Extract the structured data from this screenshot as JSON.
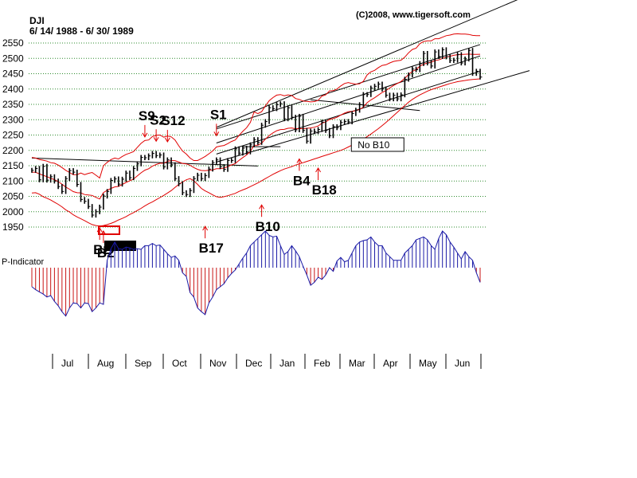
{
  "header": {
    "symbol": "DJI",
    "date_range": "6/ 14/ 1988 - 6/ 30/ 1989",
    "copyright": "(C)2008, www.tigersoft.com"
  },
  "colors": {
    "grid": "#2e8b2e",
    "price_bars": "#000000",
    "bands": "#e00000",
    "channel": "#000000",
    "indicator_positive": "#1a1aa6",
    "indicator_negative": "#c81414",
    "signal_arrow": "#e00000",
    "signal_text": "#000000"
  },
  "chart_data": [
    {
      "type": "ohlc",
      "title": "DJI",
      "y_ticks": [
        1950,
        2000,
        2050,
        2100,
        2150,
        2200,
        2250,
        2300,
        2350,
        2400,
        2450,
        2500,
        2550
      ],
      "ylim": [
        1925,
        2570
      ],
      "x_months": [
        "Jul",
        "Aug",
        "Sep",
        "Oct",
        "Nov",
        "Dec",
        "Jan",
        "Feb",
        "Mar",
        "Apr",
        "May",
        "Jun"
      ],
      "closes": [
        2135,
        2141,
        2104,
        2148,
        2103,
        2114,
        2100,
        2082,
        2066,
        2108,
        2134,
        2129,
        2089,
        2040,
        2034,
        2017,
        1989,
        2000,
        2015,
        2051,
        2066,
        2102,
        2107,
        2090,
        2106,
        2126,
        2111,
        2141,
        2156,
        2177,
        2176,
        2182,
        2190,
        2183,
        2185,
        2146,
        2169,
        2153,
        2108,
        2091,
        2062,
        2056,
        2069,
        2108,
        2119,
        2108,
        2118,
        2139,
        2160,
        2169,
        2147,
        2138,
        2167,
        2167,
        2205,
        2191,
        2207,
        2195,
        2218,
        2235,
        2226,
        2282,
        2294,
        2339,
        2336,
        2349,
        2352,
        2303,
        2339,
        2308,
        2267,
        2311,
        2265,
        2230,
        2263,
        2261,
        2268,
        2292,
        2265,
        2248,
        2277,
        2274,
        2291,
        2294,
        2293,
        2320,
        2331,
        2349,
        2382,
        2382,
        2403,
        2409,
        2416,
        2400,
        2380,
        2368,
        2380,
        2368,
        2381,
        2432,
        2446,
        2465,
        2463,
        2483,
        2516,
        2485,
        2475,
        2521,
        2506,
        2528,
        2505,
        2493,
        2494,
        2512,
        2485,
        2498,
        2526,
        2451,
        2458,
        2439
      ],
      "bands": {
        "upper": [
          2177,
          2175,
          2170,
          2168,
          2165,
          2160,
          2158,
          2152,
          2144,
          2135,
          2128,
          2121,
          2121,
          2126,
          2121,
          2125,
          2128,
          2119,
          2110,
          2150,
          2161,
          2170,
          2175,
          2172,
          2180,
          2187,
          2191,
          2196,
          2210,
          2223,
          2232,
          2234,
          2245,
          2249,
          2250,
          2243,
          2247,
          2244,
          2234,
          2215,
          2198,
          2188,
          2175,
          2167,
          2167,
          2173,
          2180,
          2189,
          2198,
          2211,
          2214,
          2216,
          2222,
          2229,
          2234,
          2249,
          2262,
          2274,
          2291,
          2325,
          2320,
          2326,
          2345,
          2362,
          2372,
          2380,
          2382,
          2378,
          2381,
          2379,
          2369,
          2366,
          2361,
          2360,
          2358,
          2359,
          2363,
          2377,
          2381,
          2394,
          2395,
          2400,
          2410,
          2418,
          2421,
          2418,
          2416,
          2417,
          2425,
          2446,
          2456,
          2461,
          2470,
          2477,
          2479,
          2485,
          2490,
          2492,
          2494,
          2504,
          2518,
          2529,
          2533,
          2548,
          2555,
          2557,
          2557,
          2564,
          2564,
          2569,
          2574,
          2576,
          2579,
          2580,
          2579,
          2579,
          2578,
          2575,
          2574,
          2574
        ],
        "lower": [
          2061,
          2062,
          2057,
          2049,
          2044,
          2038,
          2031,
          2024,
          2016,
          2006,
          1999,
          1990,
          1983,
          1977,
          1971,
          1964,
          1958,
          1955,
          1953,
          1955,
          1958,
          1962,
          1967,
          1973,
          1978,
          1984,
          1991,
          1997,
          2004,
          2011,
          2019,
          2026,
          2032,
          2039,
          2046,
          2053,
          2061,
          2069,
          2079,
          2089,
          2097,
          2104,
          2108,
          2101,
          2089,
          2076,
          2068,
          2062,
          2055,
          2049,
          2047,
          2049,
          2052,
          2056,
          2060,
          2066,
          2071,
          2076,
          2082,
          2088,
          2094,
          2101,
          2108,
          2115,
          2122,
          2128,
          2134,
          2139,
          2143,
          2147,
          2152,
          2156,
          2160,
          2164,
          2168,
          2172,
          2176,
          2180,
          2184,
          2188,
          2192,
          2196,
          2200,
          2205,
          2211,
          2217,
          2223,
          2230,
          2237,
          2245,
          2253,
          2262,
          2271,
          2281,
          2291,
          2302,
          2313,
          2324,
          2335,
          2346,
          2357,
          2366,
          2374,
          2381,
          2387,
          2393,
          2398,
          2402,
          2406,
          2410,
          2414,
          2418,
          2421,
          2424,
          2426,
          2428,
          2430,
          2431,
          2432,
          2433
        ]
      },
      "channels": [
        {
          "from": [
            0,
            2175
          ],
          "to": [
            60,
            2149
          ]
        },
        {
          "from": [
            49,
            2270
          ],
          "to": [
            119,
            2545
          ]
        },
        {
          "from": [
            49,
            2188
          ],
          "to": [
            119,
            2458
          ]
        },
        {
          "from": [
            49,
            2224
          ],
          "to": [
            119,
            2508
          ]
        },
        {
          "from": [
            56,
            2212
          ],
          "to": [
            66,
            2212
          ]
        },
        {
          "from": [
            74,
            2365
          ],
          "to": [
            103,
            2330
          ]
        }
      ],
      "signals": [
        {
          "label": "S9",
          "index": 30,
          "arrow": "down",
          "price": 2236
        },
        {
          "label": "S1",
          "index": 49,
          "arrow": "down",
          "price": 2240
        },
        {
          "label": "S2",
          "index": 33,
          "arrow": "down",
          "price": 2222
        },
        {
          "label": "S12",
          "index": 36,
          "arrow": "down",
          "price": 2220
        },
        {
          "label": "B2",
          "index": 18,
          "arrow": "up",
          "price": 1955
        },
        {
          "label": "B2",
          "index": 19,
          "arrow": "up",
          "price": 1945
        },
        {
          "label": "B17",
          "index": 46,
          "arrow": "up",
          "price": 1960
        },
        {
          "label": "B10",
          "index": 61,
          "arrow": "up",
          "price": 2030
        },
        {
          "label": "B4",
          "index": 71,
          "arrow": "up",
          "price": 2180
        },
        {
          "label": "B18",
          "index": 76,
          "arrow": "up",
          "price": 2150
        },
        {
          "label": "No B10",
          "index": 92,
          "boxed": true,
          "price": 2215
        }
      ]
    },
    {
      "type": "bar",
      "title": "P-Indicator",
      "values": [
        -26,
        -30,
        -33,
        -36,
        -40,
        -38,
        -46,
        -52,
        -60,
        -66,
        -55,
        -48,
        -49,
        -55,
        -48,
        -49,
        -60,
        -55,
        -48,
        -50,
        10,
        26,
        35,
        26,
        25,
        28,
        27,
        25,
        26,
        25,
        30,
        30,
        33,
        30,
        31,
        25,
        19,
        14,
        16,
        10,
        -7,
        -12,
        -34,
        -40,
        -55,
        -60,
        -64,
        -48,
        -40,
        -30,
        -26,
        -22,
        -14,
        -8,
        -3,
        5,
        13,
        20,
        30,
        35,
        40,
        45,
        50,
        44,
        42,
        43,
        30,
        18,
        22,
        30,
        23,
        15,
        2,
        -10,
        -24,
        -20,
        -13,
        -16,
        -10,
        0,
        -5,
        9,
        14,
        8,
        10,
        20,
        30,
        35,
        37,
        38,
        42,
        35,
        30,
        30,
        20,
        15,
        10,
        10,
        10,
        20,
        25,
        30,
        38,
        40,
        42,
        38,
        30,
        25,
        40,
        50,
        45,
        35,
        28,
        20,
        12,
        22,
        15,
        10,
        -7,
        -20
      ]
    }
  ]
}
